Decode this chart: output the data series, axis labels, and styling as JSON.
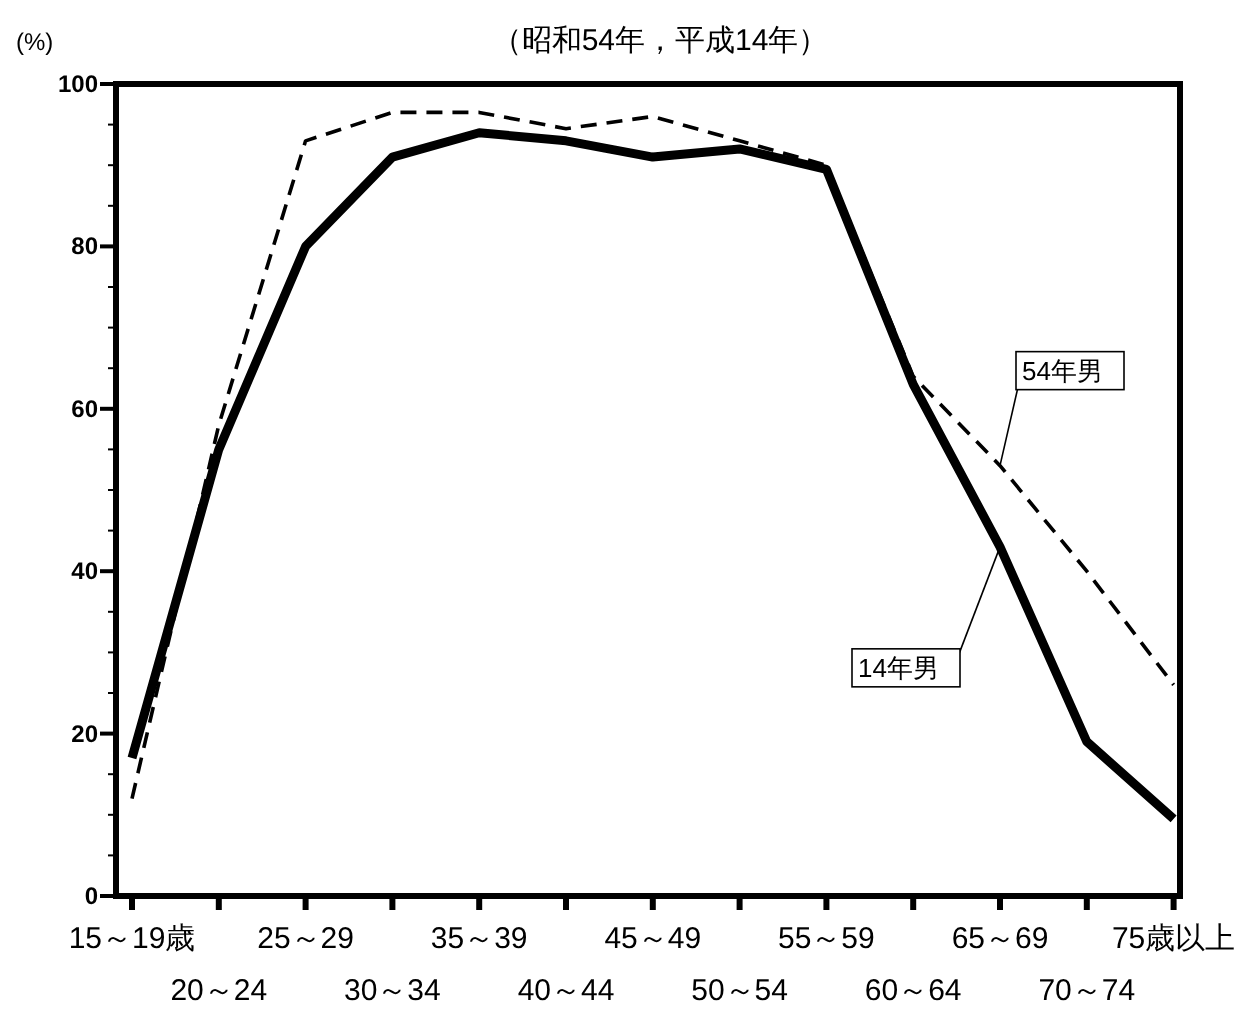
{
  "chart_data": {
    "type": "line",
    "title": "（昭和54年，平成14年）",
    "ylabel": "(%)",
    "categories": [
      "15～19歳",
      "20～24",
      "25～29",
      "30～34",
      "35～39",
      "40～44",
      "45～49",
      "50～54",
      "55～59",
      "60～64",
      "65～69",
      "70～74",
      "75歳以上"
    ],
    "series": [
      {
        "name": "14年男",
        "color": "#000000",
        "line_style": "solid",
        "values": [
          17,
          55,
          80,
          91,
          94,
          93,
          91,
          92,
          89.5,
          63,
          43,
          19,
          9.5
        ]
      },
      {
        "name": "54年男",
        "color": "#000000",
        "line_style": "dashed",
        "values": [
          12,
          58,
          93,
          96.5,
          96.5,
          94.5,
          96,
          93,
          90,
          64,
          53,
          40,
          26
        ]
      }
    ],
    "ylim": [
      0,
      100
    ],
    "yticks": [
      0,
      {
        "value": 5,
        "label": null
      },
      {
        "value": 10,
        "label": null
      },
      {
        "value": 15,
        "label": null
      },
      20,
      {
        "value": 25,
        "label": null
      },
      {
        "value": 30,
        "label": null
      },
      {
        "value": 35,
        "label": null
      },
      40,
      {
        "value": 45,
        "label": null
      },
      {
        "value": 50,
        "label": null
      },
      {
        "value": 55,
        "label": null
      },
      60,
      {
        "value": 65,
        "label": null
      },
      {
        "value": 70,
        "label": null
      },
      {
        "value": 75,
        "label": null
      },
      80,
      {
        "value": 85,
        "label": null
      },
      {
        "value": 90,
        "label": null
      },
      {
        "value": 95,
        "label": null
      },
      100
    ],
    "grid": false
  }
}
